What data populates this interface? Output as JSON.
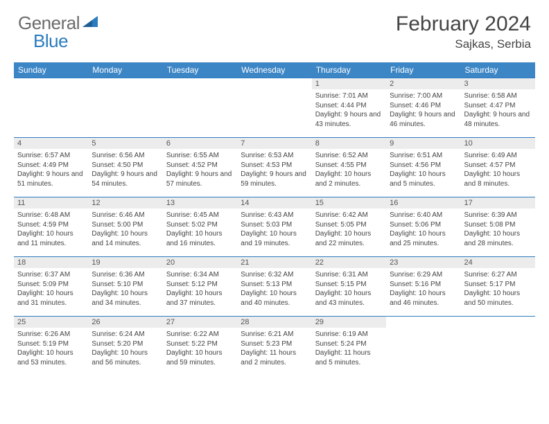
{
  "brand": {
    "part1": "General",
    "part2": "Blue"
  },
  "title": "February 2024",
  "location": "Sajkas, Serbia",
  "colors": {
    "header_bg": "#3d86c6",
    "row_divider": "#2a7bbf",
    "daynum_bg": "#ececec",
    "text": "#444444",
    "brand_gray": "#6b6b6b",
    "brand_blue": "#2a7bbf",
    "background": "#ffffff"
  },
  "typography": {
    "title_fontsize": 30,
    "location_fontsize": 17,
    "weekday_fontsize": 12,
    "daynum_fontsize": 11,
    "body_fontsize": 10
  },
  "weekdays": [
    "Sunday",
    "Monday",
    "Tuesday",
    "Wednesday",
    "Thursday",
    "Friday",
    "Saturday"
  ],
  "grid": {
    "rows": 5,
    "cols": 7,
    "first_day_col": 4,
    "last_day": 29
  },
  "days": {
    "1": {
      "sunrise": "7:01 AM",
      "sunset": "4:44 PM",
      "daylight": "9 hours and 43 minutes."
    },
    "2": {
      "sunrise": "7:00 AM",
      "sunset": "4:46 PM",
      "daylight": "9 hours and 46 minutes."
    },
    "3": {
      "sunrise": "6:58 AM",
      "sunset": "4:47 PM",
      "daylight": "9 hours and 48 minutes."
    },
    "4": {
      "sunrise": "6:57 AM",
      "sunset": "4:49 PM",
      "daylight": "9 hours and 51 minutes."
    },
    "5": {
      "sunrise": "6:56 AM",
      "sunset": "4:50 PM",
      "daylight": "9 hours and 54 minutes."
    },
    "6": {
      "sunrise": "6:55 AM",
      "sunset": "4:52 PM",
      "daylight": "9 hours and 57 minutes."
    },
    "7": {
      "sunrise": "6:53 AM",
      "sunset": "4:53 PM",
      "daylight": "9 hours and 59 minutes."
    },
    "8": {
      "sunrise": "6:52 AM",
      "sunset": "4:55 PM",
      "daylight": "10 hours and 2 minutes."
    },
    "9": {
      "sunrise": "6:51 AM",
      "sunset": "4:56 PM",
      "daylight": "10 hours and 5 minutes."
    },
    "10": {
      "sunrise": "6:49 AM",
      "sunset": "4:57 PM",
      "daylight": "10 hours and 8 minutes."
    },
    "11": {
      "sunrise": "6:48 AM",
      "sunset": "4:59 PM",
      "daylight": "10 hours and 11 minutes."
    },
    "12": {
      "sunrise": "6:46 AM",
      "sunset": "5:00 PM",
      "daylight": "10 hours and 14 minutes."
    },
    "13": {
      "sunrise": "6:45 AM",
      "sunset": "5:02 PM",
      "daylight": "10 hours and 16 minutes."
    },
    "14": {
      "sunrise": "6:43 AM",
      "sunset": "5:03 PM",
      "daylight": "10 hours and 19 minutes."
    },
    "15": {
      "sunrise": "6:42 AM",
      "sunset": "5:05 PM",
      "daylight": "10 hours and 22 minutes."
    },
    "16": {
      "sunrise": "6:40 AM",
      "sunset": "5:06 PM",
      "daylight": "10 hours and 25 minutes."
    },
    "17": {
      "sunrise": "6:39 AM",
      "sunset": "5:08 PM",
      "daylight": "10 hours and 28 minutes."
    },
    "18": {
      "sunrise": "6:37 AM",
      "sunset": "5:09 PM",
      "daylight": "10 hours and 31 minutes."
    },
    "19": {
      "sunrise": "6:36 AM",
      "sunset": "5:10 PM",
      "daylight": "10 hours and 34 minutes."
    },
    "20": {
      "sunrise": "6:34 AM",
      "sunset": "5:12 PM",
      "daylight": "10 hours and 37 minutes."
    },
    "21": {
      "sunrise": "6:32 AM",
      "sunset": "5:13 PM",
      "daylight": "10 hours and 40 minutes."
    },
    "22": {
      "sunrise": "6:31 AM",
      "sunset": "5:15 PM",
      "daylight": "10 hours and 43 minutes."
    },
    "23": {
      "sunrise": "6:29 AM",
      "sunset": "5:16 PM",
      "daylight": "10 hours and 46 minutes."
    },
    "24": {
      "sunrise": "6:27 AM",
      "sunset": "5:17 PM",
      "daylight": "10 hours and 50 minutes."
    },
    "25": {
      "sunrise": "6:26 AM",
      "sunset": "5:19 PM",
      "daylight": "10 hours and 53 minutes."
    },
    "26": {
      "sunrise": "6:24 AM",
      "sunset": "5:20 PM",
      "daylight": "10 hours and 56 minutes."
    },
    "27": {
      "sunrise": "6:22 AM",
      "sunset": "5:22 PM",
      "daylight": "10 hours and 59 minutes."
    },
    "28": {
      "sunrise": "6:21 AM",
      "sunset": "5:23 PM",
      "daylight": "11 hours and 2 minutes."
    },
    "29": {
      "sunrise": "6:19 AM",
      "sunset": "5:24 PM",
      "daylight": "11 hours and 5 minutes."
    }
  },
  "labels": {
    "sunrise": "Sunrise: ",
    "sunset": "Sunset: ",
    "daylight": "Daylight: "
  }
}
